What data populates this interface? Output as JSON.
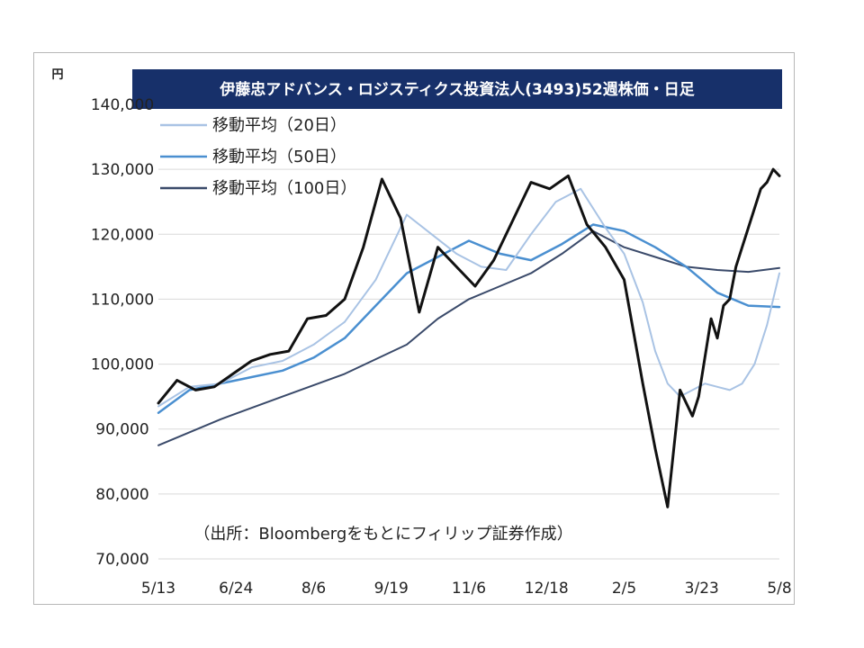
{
  "chart_data": {
    "type": "line",
    "title": "伊藤忠アドバンス・ロジスティクス投資法人(3493)52週株価・日足",
    "unit": "円",
    "source_note": "（出所：Bloombergをもとにフィリップ証券作成）",
    "ylim": [
      70000,
      140000
    ],
    "y_ticks": [
      "70,000",
      "80,000",
      "90,000",
      "100,000",
      "110,000",
      "120,000",
      "130,000",
      "140,000"
    ],
    "x_ticks": [
      "5/13",
      "6/24",
      "8/6",
      "9/19",
      "11/6",
      "12/18",
      "2/5",
      "3/23",
      "5/8"
    ],
    "x_range": [
      0,
      100
    ],
    "grid": true,
    "legend_position": "top-left",
    "series": [
      {
        "name": "",
        "color": "#111111",
        "x": [
          0,
          3,
          6,
          9,
          12,
          15,
          18,
          21,
          24,
          27,
          30,
          33,
          36,
          39,
          42,
          45,
          48,
          51,
          54,
          57,
          60,
          63,
          66,
          69,
          72,
          75,
          78,
          80,
          82,
          84,
          86,
          87,
          88,
          89,
          90,
          91,
          92,
          93,
          94,
          95,
          96,
          97,
          98,
          99,
          100
        ],
        "values": [
          94000,
          97500,
          96000,
          96500,
          98500,
          100500,
          101500,
          102000,
          107000,
          107500,
          110000,
          118000,
          128500,
          122500,
          108000,
          118000,
          115000,
          112000,
          116000,
          122000,
          128000,
          127000,
          129000,
          121500,
          118000,
          113000,
          97000,
          87000,
          78000,
          96000,
          92000,
          95000,
          101000,
          107000,
          104000,
          109000,
          110000,
          115000,
          118000,
          121000,
          124000,
          127000,
          128000,
          130000,
          129000
        ]
      },
      {
        "name": "移動平均（20日）",
        "color": "#a9c3e4",
        "x": [
          0,
          5,
          10,
          15,
          20,
          25,
          30,
          35,
          40,
          44,
          48,
          52,
          56,
          60,
          64,
          68,
          72,
          75,
          78,
          80,
          82,
          84,
          86,
          88,
          90,
          92,
          94,
          96,
          98,
          100
        ],
        "values": [
          93500,
          96500,
          97000,
          99500,
          100500,
          103000,
          106500,
          113000,
          123000,
          120000,
          117000,
          115000,
          114500,
          120000,
          125000,
          127000,
          121000,
          117000,
          109500,
          102000,
          97000,
          95000,
          96000,
          97000,
          96500,
          96000,
          97000,
          100000,
          106000,
          114000
        ]
      },
      {
        "name": "移動平均（50日）",
        "color": "#4a8fd0",
        "x": [
          0,
          5,
          10,
          15,
          20,
          25,
          30,
          35,
          40,
          45,
          50,
          55,
          60,
          65,
          70,
          75,
          80,
          85,
          90,
          95,
          100
        ],
        "values": [
          92500,
          96000,
          97000,
          98000,
          99000,
          101000,
          104000,
          109000,
          114000,
          116500,
          119000,
          117000,
          116000,
          118500,
          121500,
          120500,
          118000,
          115000,
          111000,
          109000,
          108800
        ]
      },
      {
        "name": "移動平均（100日）",
        "color": "#3a4a6a",
        "x": [
          0,
          10,
          20,
          30,
          40,
          45,
          50,
          55,
          60,
          65,
          70,
          75,
          80,
          85,
          90,
          95,
          100
        ],
        "values": [
          87500,
          91500,
          95000,
          98500,
          103000,
          107000,
          110000,
          112000,
          114000,
          117000,
          120500,
          118000,
          116500,
          115000,
          114500,
          114200,
          114800
        ]
      }
    ]
  }
}
